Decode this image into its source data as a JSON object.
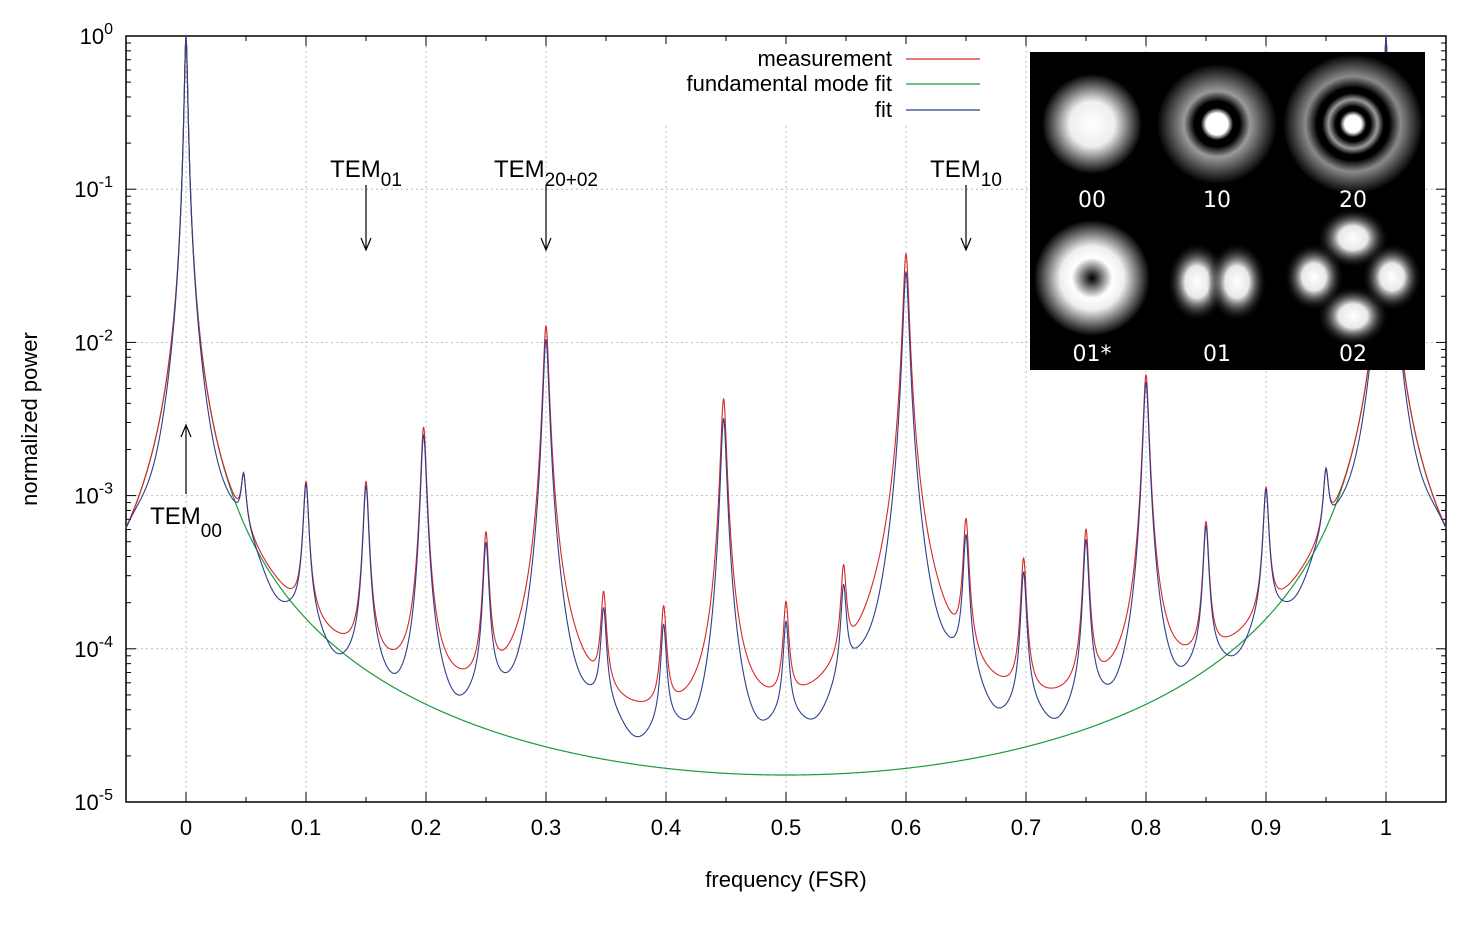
{
  "chart_data": {
    "type": "line",
    "title": "",
    "xlabel": "frequency (FSR)",
    "ylabel": "normalized power",
    "xlim": [
      -0.05,
      1.05
    ],
    "ylim": [
      1e-05,
      1
    ],
    "yscale": "log",
    "grid": true,
    "legend_position": "top-right",
    "x_ticks": [
      "0",
      "0.1",
      "0.2",
      "0.3",
      "0.4",
      "0.5",
      "0.6",
      "0.7",
      "0.8",
      "0.9",
      "1"
    ],
    "y_ticks": [
      {
        "base": "10",
        "exp": "0"
      },
      {
        "base": "10",
        "exp": "-1"
      },
      {
        "base": "10",
        "exp": "-2"
      },
      {
        "base": "10",
        "exp": "-3"
      },
      {
        "base": "10",
        "exp": "-4"
      },
      {
        "base": "10",
        "exp": "-5"
      }
    ],
    "series": [
      {
        "name": "measurement",
        "color": "#d62728"
      },
      {
        "name": "fundamental mode fit",
        "color": "#1a9b3c"
      },
      {
        "name": "fit",
        "color": "#2c3f8c"
      }
    ],
    "fundamental_mode": {
      "peak_power": 1.0,
      "min_power": 1.5e-05,
      "min_x": 0.5,
      "peaks_x": [
        0,
        1
      ]
    },
    "peaks": [
      {
        "x": 0.0,
        "power": 1.0
      },
      {
        "x": 0.048,
        "power": 0.0014
      },
      {
        "x": 0.1,
        "power": 0.0012
      },
      {
        "x": 0.15,
        "power": 0.00115
      },
      {
        "x": 0.198,
        "power": 0.0025
      },
      {
        "x": 0.25,
        "power": 0.00047
      },
      {
        "x": 0.3,
        "power": 0.0105
      },
      {
        "x": 0.348,
        "power": 0.00016
      },
      {
        "x": 0.398,
        "power": 0.00013
      },
      {
        "x": 0.448,
        "power": 0.0032
      },
      {
        "x": 0.5,
        "power": 0.00013
      },
      {
        "x": 0.548,
        "power": 0.00021
      },
      {
        "x": 0.6,
        "power": 0.029
      },
      {
        "x": 0.65,
        "power": 0.0005
      },
      {
        "x": 0.698,
        "power": 0.0003
      },
      {
        "x": 0.75,
        "power": 0.0005
      },
      {
        "x": 0.8,
        "power": 0.0055
      },
      {
        "x": 0.85,
        "power": 0.00062
      },
      {
        "x": 0.9,
        "power": 0.0011
      },
      {
        "x": 0.95,
        "power": 0.0015
      },
      {
        "x": 1.0,
        "power": 1.0
      }
    ],
    "annotations": [
      {
        "base": "TEM",
        "sub": "00",
        "x": 0.0,
        "arrow": "up"
      },
      {
        "base": "TEM",
        "sub": "01",
        "x": 0.15,
        "arrow": "down"
      },
      {
        "base": "TEM",
        "sub": "20+02",
        "x": 0.3,
        "arrow": "down"
      },
      {
        "base": "TEM",
        "sub": "10",
        "x": 0.65,
        "arrow": "down"
      }
    ]
  },
  "inset": {
    "labels": [
      "00",
      "10",
      "20",
      "01*",
      "01",
      "02"
    ]
  }
}
